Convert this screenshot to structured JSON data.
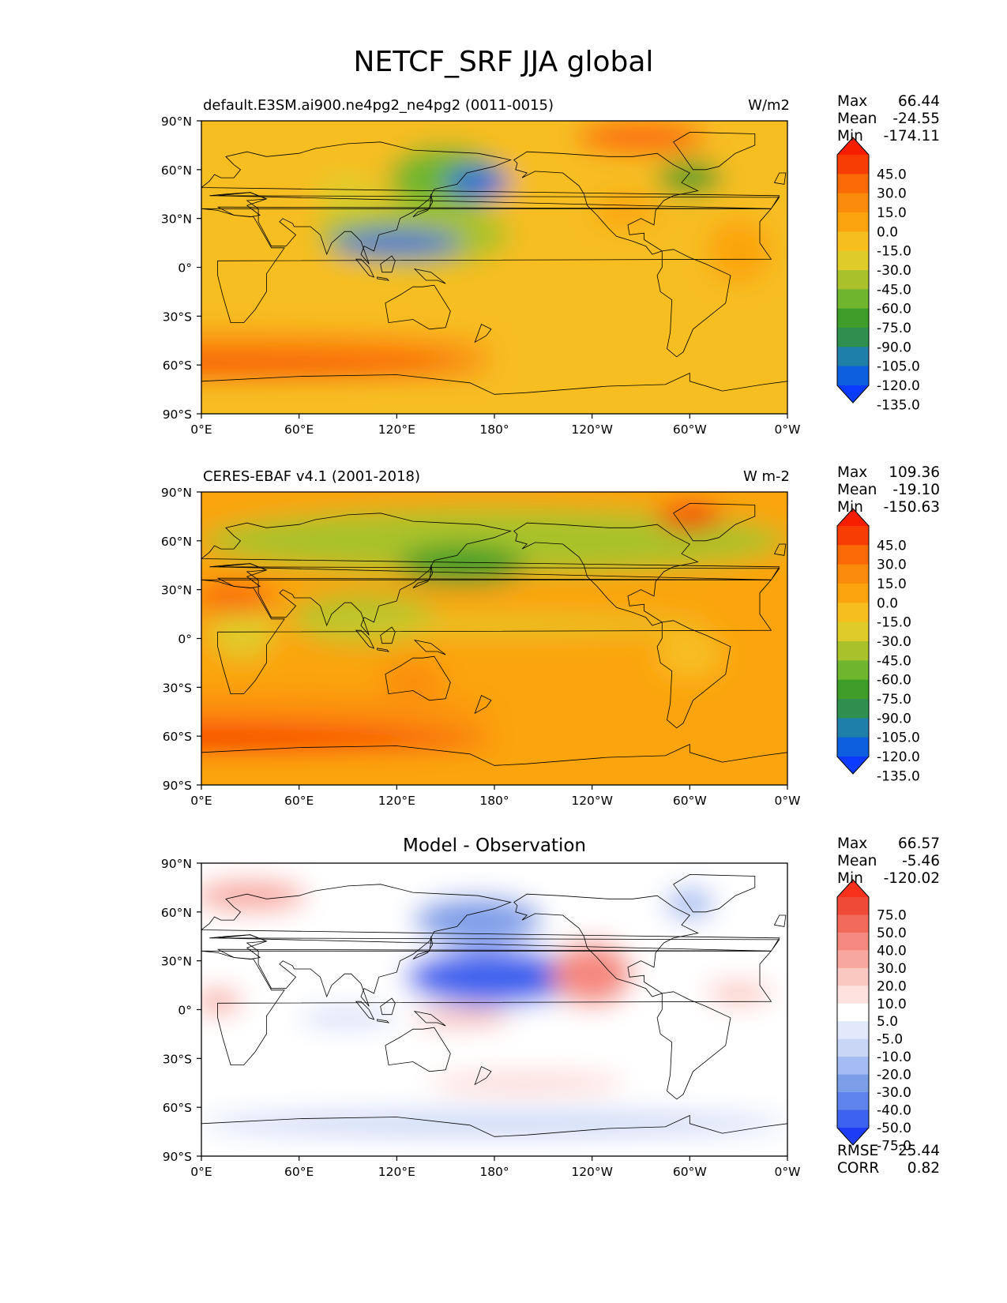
{
  "figure_title": "NETCF_SRF JJA global",
  "colors": {
    "field_scale": [
      "#0b3bff",
      "#0d5fe0",
      "#1e7fa8",
      "#2f8f4e",
      "#3f9e2a",
      "#6fb52d",
      "#a9c22c",
      "#dfcc2a",
      "#f7be20",
      "#fba40f",
      "#fb8b0a",
      "#fb6a07",
      "#f73d03",
      "#f71e00"
    ],
    "diff_scale": [
      "#1d3df5",
      "#3c62ee",
      "#5e83ec",
      "#7d9ee9",
      "#a4bcf1",
      "#c9d6f6",
      "#e2e9fb",
      "#ffffff",
      "#fde2df",
      "#fbc7c1",
      "#f8a79e",
      "#f5897f",
      "#f26a5c",
      "#ee4a37",
      "#f7311c"
    ],
    "land_outline": "#000000"
  },
  "chart_data": [
    {
      "type": "heatmap",
      "id": "model",
      "title_left": "default.E3SM.ai900.ne4pg2_ne4pg2 (0011-0015)",
      "title_right": "W/m2",
      "stats": [
        {
          "label": "Max",
          "value": "66.44"
        },
        {
          "label": "Mean",
          "value": "-24.55"
        },
        {
          "label": "Min",
          "value": "-174.11"
        }
      ],
      "colorbar_levels": [
        "45.0",
        "30.0",
        "15.0",
        "0.0",
        "-15.0",
        "-30.0",
        "-45.0",
        "-60.0",
        "-75.0",
        "-90.0",
        "-105.0",
        "-120.0",
        "-135.0"
      ],
      "x_ticks": [
        "0°E",
        "60°E",
        "120°E",
        "180°",
        "120°W",
        "60°W",
        "0°W"
      ],
      "y_ticks": [
        "90°N",
        "60°N",
        "30°N",
        "0°",
        "30°S",
        "60°S",
        "90°S"
      ],
      "lon_range": [
        0,
        360
      ],
      "lat_range": [
        -90,
        90
      ],
      "features": [
        {
          "lon": 0,
          "lat": 0,
          "w": 360,
          "h": 180,
          "value": -22
        },
        {
          "lon": 0,
          "lat": -50,
          "w": 360,
          "h": 22,
          "value": 5
        },
        {
          "lon": 0,
          "lat": -62,
          "w": 360,
          "h": 12,
          "value": 40
        },
        {
          "lon": 0,
          "lat": 80,
          "w": 360,
          "h": 18,
          "value": -18
        },
        {
          "lon": 150,
          "lat": 55,
          "w": 70,
          "h": 40,
          "value": -75
        },
        {
          "lon": 170,
          "lat": 52,
          "w": 40,
          "h": 18,
          "value": -130
        },
        {
          "lon": 130,
          "lat": 20,
          "w": 120,
          "h": 40,
          "value": -60
        },
        {
          "lon": 120,
          "lat": 15,
          "w": 80,
          "h": 14,
          "value": -130
        },
        {
          "lon": 300,
          "lat": 55,
          "w": 40,
          "h": 20,
          "value": -90
        },
        {
          "lon": 90,
          "lat": 45,
          "w": 40,
          "h": 25,
          "value": -45
        },
        {
          "lon": 330,
          "lat": 10,
          "w": 40,
          "h": 40,
          "value": -10
        },
        {
          "lon": 260,
          "lat": 35,
          "w": 40,
          "h": 20,
          "value": -10
        },
        {
          "lon": 270,
          "lat": 80,
          "w": 80,
          "h": 20,
          "value": 15
        }
      ]
    },
    {
      "type": "heatmap",
      "id": "observation",
      "title_left": "CERES-EBAF v4.1 (2001-2018)",
      "title_right": "W m-2",
      "stats": [
        {
          "label": "Max",
          "value": "109.36"
        },
        {
          "label": "Mean",
          "value": "-19.10"
        },
        {
          "label": "Min",
          "value": "-150.63"
        }
      ],
      "colorbar_levels": [
        "45.0",
        "30.0",
        "15.0",
        "0.0",
        "-15.0",
        "-30.0",
        "-45.0",
        "-60.0",
        "-75.0",
        "-90.0",
        "-105.0",
        "-120.0",
        "-135.0"
      ],
      "x_ticks": [
        "0°E",
        "60°E",
        "120°E",
        "180°",
        "120°W",
        "60°W",
        "0°W"
      ],
      "y_ticks": [
        "90°N",
        "60°N",
        "30°N",
        "0°",
        "30°S",
        "60°S",
        "90°S"
      ],
      "lon_range": [
        0,
        360
      ],
      "lat_range": [
        -90,
        90
      ],
      "features": [
        {
          "lon": 0,
          "lat": 0,
          "w": 360,
          "h": 180,
          "value": -15
        },
        {
          "lon": 0,
          "lat": -45,
          "w": 360,
          "h": 20,
          "value": 10
        },
        {
          "lon": 0,
          "lat": -62,
          "w": 360,
          "h": 14,
          "value": 45
        },
        {
          "lon": 180,
          "lat": 60,
          "w": 360,
          "h": 40,
          "value": -60
        },
        {
          "lon": 160,
          "lat": 45,
          "w": 80,
          "h": 25,
          "value": -90
        },
        {
          "lon": 100,
          "lat": 12,
          "w": 90,
          "h": 30,
          "value": -60
        },
        {
          "lon": 180,
          "lat": 8,
          "w": 260,
          "h": 10,
          "value": -45
        },
        {
          "lon": 25,
          "lat": 5,
          "w": 40,
          "h": 35,
          "value": -45
        },
        {
          "lon": 300,
          "lat": -10,
          "w": 40,
          "h": 30,
          "value": -30
        },
        {
          "lon": 20,
          "lat": 25,
          "w": 50,
          "h": 20,
          "value": 15
        },
        {
          "lon": 300,
          "lat": 75,
          "w": 40,
          "h": 15,
          "value": 45
        },
        {
          "lon": 130,
          "lat": -25,
          "w": 40,
          "h": 20,
          "value": 5
        }
      ]
    },
    {
      "type": "heatmap",
      "id": "difference",
      "title_center": "Model - Observation",
      "stats": [
        {
          "label": "Max",
          "value": "66.57"
        },
        {
          "label": "Mean",
          "value": "-5.46"
        },
        {
          "label": "Min",
          "value": "-120.02"
        }
      ],
      "extra_stats": [
        {
          "label": "RMSE",
          "value": "25.44"
        },
        {
          "label": "CORR",
          "value": "0.82"
        }
      ],
      "colorbar_levels": [
        "75.0",
        "50.0",
        "40.0",
        "30.0",
        "20.0",
        "10.0",
        "5.0",
        "-5.0",
        "-10.0",
        "-20.0",
        "-30.0",
        "-40.0",
        "-50.0",
        "-75.0"
      ],
      "x_ticks": [
        "0°E",
        "60°E",
        "120°E",
        "180°",
        "120°W",
        "60°W",
        "0°W"
      ],
      "y_ticks": [
        "90°N",
        "60°N",
        "30°N",
        "0°",
        "30°S",
        "60°S",
        "90°S"
      ],
      "lon_range": [
        0,
        360
      ],
      "lat_range": [
        -90,
        90
      ],
      "features": [
        {
          "lon": 0,
          "lat": 0,
          "w": 360,
          "h": 180,
          "value": 0
        },
        {
          "lon": 180,
          "lat": 20,
          "w": 110,
          "h": 35,
          "value": -60
        },
        {
          "lon": 170,
          "lat": 55,
          "w": 80,
          "h": 30,
          "value": -40
        },
        {
          "lon": 240,
          "lat": 22,
          "w": 50,
          "h": 40,
          "value": 30
        },
        {
          "lon": 30,
          "lat": 70,
          "w": 70,
          "h": 20,
          "value": 20
        },
        {
          "lon": 10,
          "lat": 5,
          "w": 30,
          "h": 15,
          "value": 25
        },
        {
          "lon": 300,
          "lat": 65,
          "w": 30,
          "h": 20,
          "value": -30
        },
        {
          "lon": 180,
          "lat": -70,
          "w": 360,
          "h": 16,
          "value": -20
        },
        {
          "lon": 90,
          "lat": -5,
          "w": 60,
          "h": 10,
          "value": -15
        },
        {
          "lon": 160,
          "lat": -5,
          "w": 60,
          "h": 10,
          "value": 20
        },
        {
          "lon": 330,
          "lat": 10,
          "w": 40,
          "h": 15,
          "value": 15
        },
        {
          "lon": 200,
          "lat": -45,
          "w": 120,
          "h": 10,
          "value": 10
        }
      ]
    }
  ]
}
